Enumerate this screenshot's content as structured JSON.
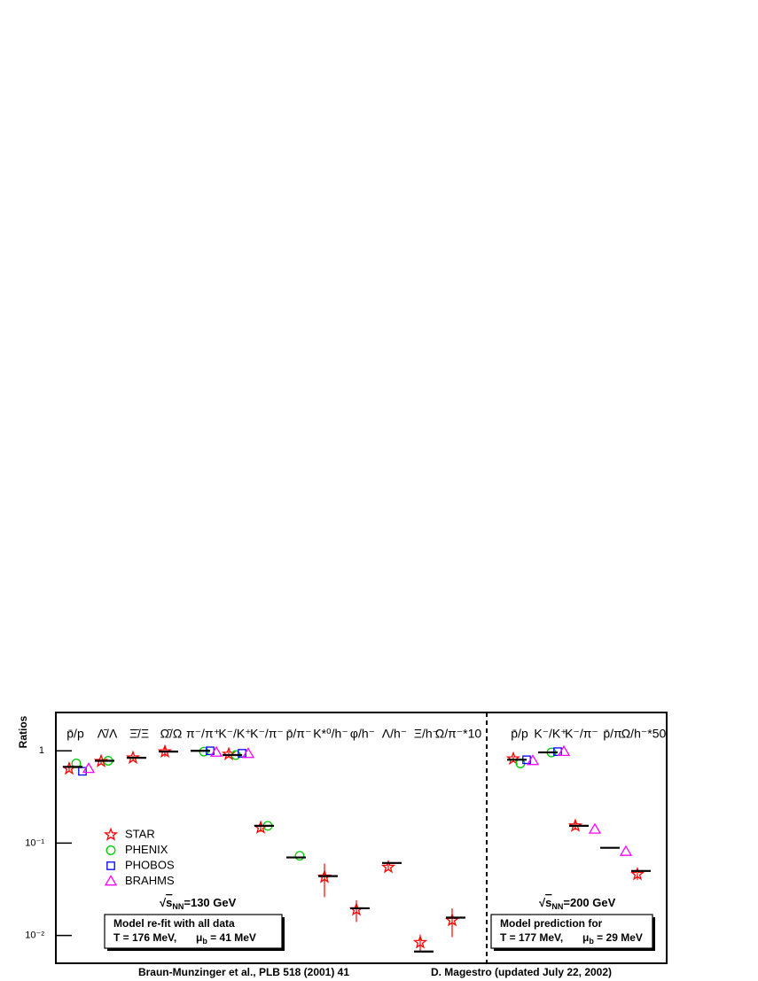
{
  "chart_data": [
    {
      "type": "scatter",
      "ylabel": "Ratios",
      "log_y": true,
      "ylim": [
        0.005,
        2.6
      ],
      "yticks": [
        {
          "value": 0.01,
          "label": "10⁻²"
        },
        {
          "value": 0.1,
          "label": "10⁻¹"
        },
        1
      ],
      "categories": [
        "p̄/p",
        "Λ̄/Λ",
        "Ξ̄/Ξ",
        "Ω̄/Ω",
        "π⁻/π⁺",
        "K⁻/K⁺",
        "K⁻/π⁻",
        "p̄/π⁻",
        "K*⁰/h⁻",
        "φ/h⁻",
        "Λ/h⁻",
        "Ξ/h⁻",
        "Ω/π⁻*10"
      ],
      "series": [
        {
          "name": "STAR",
          "color": "#ff0000",
          "marker": "star",
          "values": [
            0.64,
            0.77,
            0.84,
            0.98,
            null,
            0.92,
            0.147,
            null,
            0.043,
            0.019,
            0.055,
            0.0084,
            0.0146
          ],
          "errors": [
            0.04,
            0.04,
            0.04,
            0.12,
            null,
            0.06,
            0.015,
            null,
            0.017,
            0.005,
            0.004,
            0.0018,
            0.005
          ]
        },
        {
          "name": "PHENIX",
          "color": "#00cc00",
          "marker": "circle",
          "values": [
            0.73,
            0.78,
            null,
            null,
            0.98,
            0.9,
            0.154,
            0.073,
            null,
            null,
            null,
            null,
            null
          ]
        },
        {
          "name": "PHOBOS",
          "color": "#0000ff",
          "marker": "square",
          "values": [
            0.6,
            null,
            null,
            null,
            1.0,
            0.94,
            null,
            null,
            null,
            null,
            null,
            null,
            null
          ]
        },
        {
          "name": "BRAHMS",
          "color": "#ff00ff",
          "marker": "triangle",
          "values": [
            0.64,
            null,
            null,
            null,
            0.96,
            0.93,
            null,
            null,
            null,
            null,
            null,
            null,
            null
          ]
        },
        {
          "name": "Model",
          "color": "#000000",
          "marker": "hline",
          "values": [
            0.67,
            0.78,
            0.84,
            0.98,
            1.0,
            0.9,
            0.154,
            0.07,
            0.044,
            0.0197,
            0.061,
            0.0067,
            0.0156
          ]
        }
      ],
      "legend": true,
      "energy": [
        "√",
        "s",
        "NN",
        "=130 GeV"
      ],
      "model_note": [
        "Model re-fit with all data",
        "T = 176 MeV,",
        "μ",
        "b",
        " = 41 MeV"
      ],
      "footer": "Braun-Munzinger et al., PLB 518 (2001) 41"
    },
    {
      "type": "scatter",
      "log_y": true,
      "ylim": [
        0.005,
        2.6
      ],
      "categories": [
        "p̄/p",
        "K⁻/K⁺",
        "K⁻/π⁻",
        "p̄/π",
        "Ω/h⁻*50"
      ],
      "series": [
        {
          "name": "STAR",
          "color": "#ff0000",
          "marker": "star",
          "values": [
            0.82,
            null,
            0.154,
            null,
            0.046
          ],
          "errors": [
            0.05,
            null,
            0.015,
            null,
            0.006
          ]
        },
        {
          "name": "PHENIX",
          "color": "#00cc00",
          "marker": "circle",
          "values": [
            0.73,
            0.96,
            null,
            null,
            null
          ]
        },
        {
          "name": "PHOBOS",
          "color": "#0000ff",
          "marker": "square",
          "values": [
            0.8,
            0.98,
            null,
            null,
            null
          ]
        },
        {
          "name": "BRAHMS",
          "color": "#ff00ff",
          "marker": "triangle",
          "values": [
            0.78,
            0.98,
            0.141,
            0.081,
            null
          ]
        },
        {
          "name": "Model",
          "color": "#000000",
          "marker": "hline",
          "values": [
            0.8,
            0.96,
            0.154,
            0.089,
            0.05
          ]
        }
      ],
      "energy": [
        "√",
        "s",
        "NN",
        "=200 GeV"
      ],
      "model_note": [
        "Model prediction for",
        "T = 177 MeV,",
        "μ",
        "b",
        " = 29 MeV"
      ],
      "footer": "D. Magestro (updated July 22, 2002)"
    }
  ]
}
